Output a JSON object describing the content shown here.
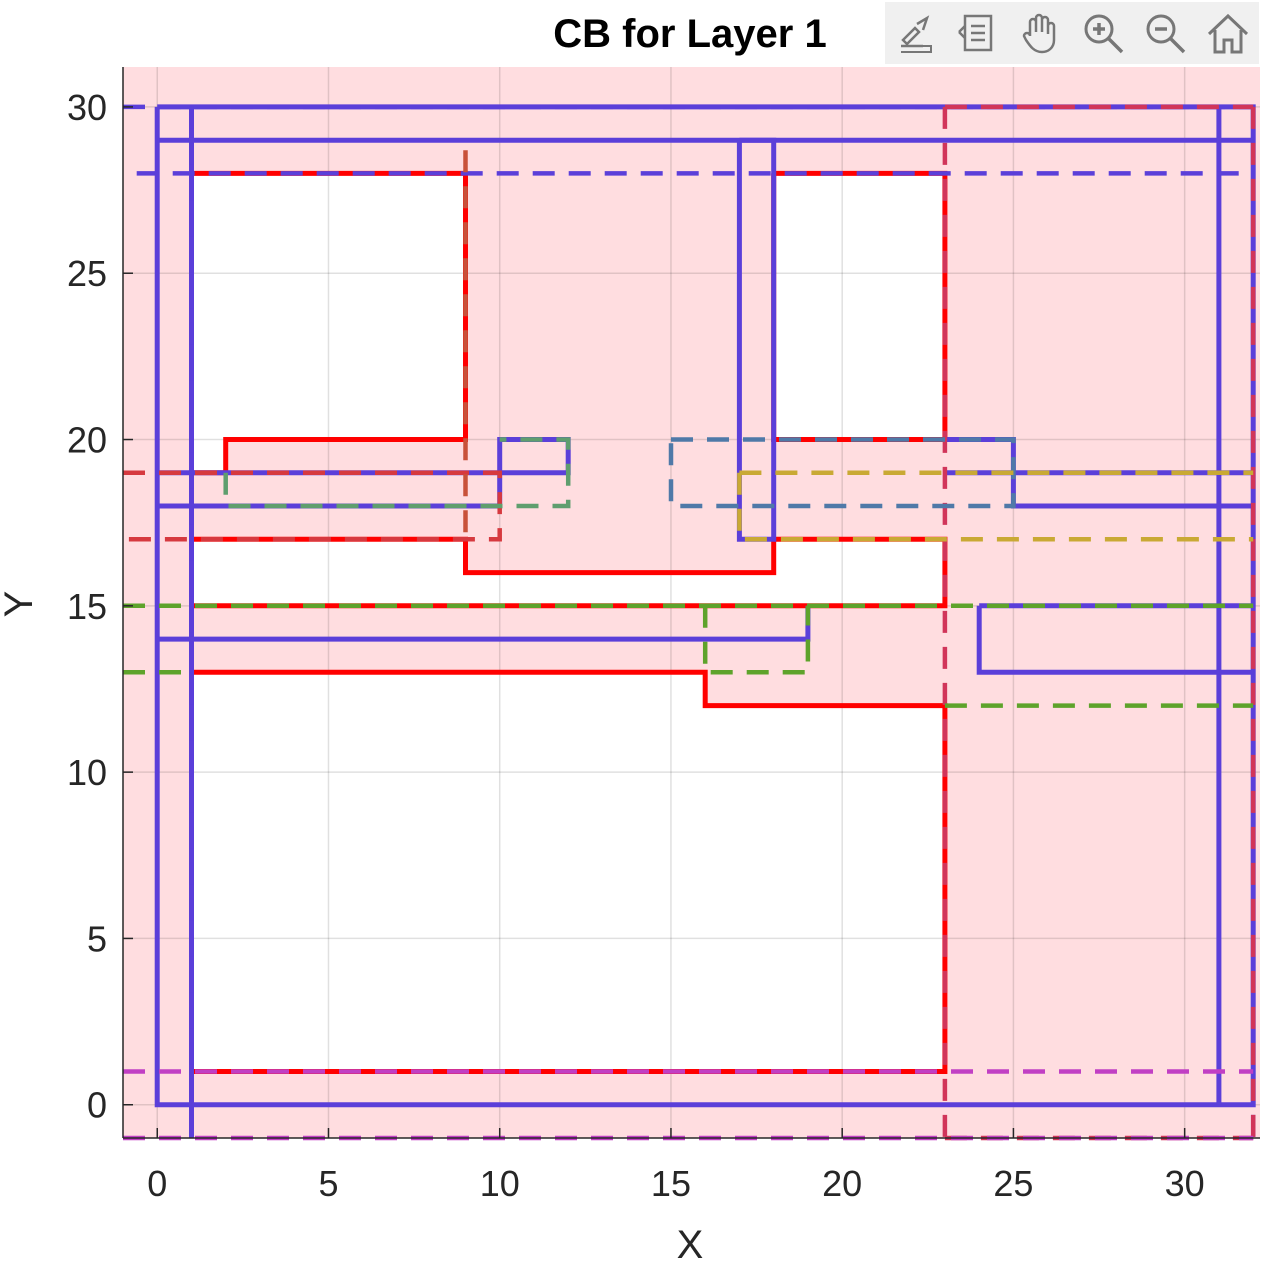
{
  "chart_data": {
    "type": "line",
    "title": "CB for Layer 1",
    "xlabel": "X",
    "ylabel": "Y",
    "xlim": [
      -1,
      32.2
    ],
    "ylim": [
      -1,
      31.2
    ],
    "xticks": [
      0,
      5,
      10,
      15,
      20,
      25,
      30
    ],
    "yticks": [
      0,
      5,
      10,
      15,
      20,
      25,
      30
    ],
    "grid": true,
    "background": {
      "color": "#ffdde0",
      "rect": [
        [
          -1,
          -1
        ],
        [
          32.2,
          31.2
        ]
      ],
      "holes": [
        [
          [
            1,
            28
          ],
          [
            9,
            28
          ],
          [
            9,
            20
          ],
          [
            2,
            20
          ],
          [
            2,
            19
          ],
          [
            1,
            19
          ]
        ],
        [
          [
            18,
            28
          ],
          [
            23,
            28
          ],
          [
            23,
            20
          ],
          [
            18,
            20
          ]
        ],
        [
          [
            1,
            17
          ],
          [
            9,
            17
          ],
          [
            9,
            16
          ],
          [
            18,
            16
          ],
          [
            18,
            17
          ],
          [
            23,
            17
          ],
          [
            23,
            15
          ],
          [
            1,
            15
          ]
        ],
        [
          [
            1,
            13
          ],
          [
            16,
            13
          ],
          [
            16,
            12
          ],
          [
            23,
            12
          ],
          [
            23,
            1
          ],
          [
            1,
            1
          ]
        ]
      ]
    },
    "series": [
      {
        "color": "#ff0000",
        "style": "solid",
        "points": [
          [
            1,
            28
          ],
          [
            9,
            28
          ],
          [
            9,
            20
          ],
          [
            2,
            20
          ],
          [
            2,
            19
          ],
          [
            1,
            19
          ],
          [
            1,
            28
          ]
        ]
      },
      {
        "color": "#ff0000",
        "style": "solid",
        "points": [
          [
            18,
            28
          ],
          [
            23,
            28
          ],
          [
            23,
            20
          ],
          [
            18,
            20
          ],
          [
            18,
            28
          ]
        ]
      },
      {
        "color": "#ff0000",
        "style": "solid",
        "points": [
          [
            1,
            17
          ],
          [
            9,
            17
          ],
          [
            9,
            16
          ],
          [
            18,
            16
          ],
          [
            18,
            17
          ],
          [
            23,
            17
          ],
          [
            23,
            15
          ],
          [
            1,
            15
          ],
          [
            1,
            17
          ]
        ]
      },
      {
        "color": "#ff0000",
        "style": "solid",
        "points": [
          [
            1,
            13
          ],
          [
            16,
            13
          ],
          [
            16,
            12
          ],
          [
            23,
            12
          ],
          [
            23,
            1
          ],
          [
            1,
            1
          ],
          [
            1,
            13
          ]
        ]
      },
      {
        "color": "#5b3fd9",
        "style": "solid",
        "points": [
          [
            0,
            30
          ],
          [
            32,
            30
          ],
          [
            32,
            0
          ],
          [
            0,
            0
          ],
          [
            0,
            30
          ]
        ]
      },
      {
        "color": "#5b3fd9",
        "style": "solid",
        "points": [
          [
            1,
            30
          ],
          [
            1,
            -1
          ]
        ]
      },
      {
        "color": "#5b3fd9",
        "style": "solid",
        "points": [
          [
            0,
            29
          ],
          [
            32,
            29
          ]
        ]
      },
      {
        "color": "#5b3fd9",
        "style": "solid",
        "points": [
          [
            31,
            30
          ],
          [
            31,
            0
          ]
        ]
      },
      {
        "color": "#5b3fd9",
        "style": "solid",
        "points": [
          [
            17,
            29
          ],
          [
            18,
            29
          ],
          [
            18,
            17
          ],
          [
            17,
            17
          ],
          [
            17,
            29
          ]
        ]
      },
      {
        "color": "#5b3fd9",
        "style": "solid",
        "points": [
          [
            0,
            19
          ],
          [
            10,
            19
          ],
          [
            10,
            20
          ],
          [
            12,
            20
          ],
          [
            12,
            19
          ],
          [
            10,
            19
          ]
        ]
      },
      {
        "color": "#5b3fd9",
        "style": "solid",
        "points": [
          [
            0,
            18
          ],
          [
            10,
            18
          ],
          [
            10,
            19
          ]
        ]
      },
      {
        "color": "#5b3fd9",
        "style": "solid",
        "points": [
          [
            23,
            20
          ],
          [
            25,
            20
          ],
          [
            25,
            18
          ],
          [
            32,
            18
          ]
        ]
      },
      {
        "color": "#5b3fd9",
        "style": "solid",
        "points": [
          [
            23,
            19
          ],
          [
            32,
            19
          ]
        ]
      },
      {
        "color": "#5b3fd9",
        "style": "solid",
        "points": [
          [
            0,
            14
          ],
          [
            19,
            14
          ],
          [
            19,
            15
          ]
        ]
      },
      {
        "color": "#5b3fd9",
        "style": "solid",
        "points": [
          [
            24,
            15
          ],
          [
            32,
            15
          ]
        ]
      },
      {
        "color": "#5b3fd9",
        "style": "solid",
        "points": [
          [
            24,
            15
          ],
          [
            24,
            13
          ],
          [
            32,
            13
          ]
        ]
      },
      {
        "color": "#5b3fd9",
        "style": "dashed",
        "points": [
          [
            -1,
            30
          ],
          [
            32,
            30
          ]
        ]
      },
      {
        "color": "#5b3fd9",
        "style": "dashed",
        "points": [
          [
            -0.6,
            28
          ],
          [
            32,
            28
          ]
        ]
      },
      {
        "color": "#5b3fd9",
        "style": "dashed",
        "points": [
          [
            1,
            30
          ],
          [
            1,
            -1
          ]
        ]
      },
      {
        "color": "#5b3fd9",
        "style": "dashed",
        "points": [
          [
            32,
            30
          ],
          [
            32,
            -1
          ]
        ]
      },
      {
        "color": "#d1355a",
        "style": "dashed",
        "points": [
          [
            23,
            30
          ],
          [
            32,
            30
          ]
        ]
      },
      {
        "color": "#d1355a",
        "style": "dashed",
        "points": [
          [
            23,
            30
          ],
          [
            23,
            -1
          ]
        ]
      },
      {
        "color": "#d1355a",
        "style": "dashed",
        "points": [
          [
            32,
            30
          ],
          [
            32,
            -1
          ]
        ]
      },
      {
        "color": "#d1355a",
        "style": "dashed",
        "points": [
          [
            23,
            -1
          ],
          [
            32,
            -1
          ]
        ]
      },
      {
        "color": "#d6393f",
        "style": "dashed",
        "points": [
          [
            -1,
            19
          ],
          [
            10,
            19
          ],
          [
            10,
            17
          ],
          [
            -1,
            17
          ]
        ]
      },
      {
        "color": "#c8523a",
        "style": "dashed",
        "points": [
          [
            9,
            28.7
          ],
          [
            9,
            17
          ]
        ]
      },
      {
        "color": "#5f9e6e",
        "style": "dashed",
        "points": [
          [
            2,
            19
          ],
          [
            2,
            18
          ],
          [
            12,
            18
          ],
          [
            12,
            20
          ],
          [
            10,
            20
          ]
        ]
      },
      {
        "color": "#4f79a8",
        "style": "dashed",
        "points": [
          [
            15,
            20
          ],
          [
            25,
            20
          ],
          [
            25,
            18
          ],
          [
            15,
            18
          ],
          [
            15,
            20
          ]
        ]
      },
      {
        "color": "#c9a934",
        "style": "dashed",
        "points": [
          [
            17,
            19
          ],
          [
            32,
            19
          ]
        ]
      },
      {
        "color": "#c9a934",
        "style": "dashed",
        "points": [
          [
            17,
            19
          ],
          [
            17,
            17
          ],
          [
            32,
            17
          ]
        ]
      },
      {
        "color": "#5ea32b",
        "style": "dashed",
        "points": [
          [
            -1,
            15
          ],
          [
            32,
            15
          ]
        ]
      },
      {
        "color": "#5ea32b",
        "style": "dashed",
        "points": [
          [
            16,
            15
          ],
          [
            16,
            13
          ],
          [
            19,
            13
          ],
          [
            19,
            15
          ]
        ]
      },
      {
        "color": "#5ea32b",
        "style": "dashed",
        "points": [
          [
            -1,
            13
          ],
          [
            1,
            13
          ]
        ]
      },
      {
        "color": "#5ea32b",
        "style": "dashed",
        "points": [
          [
            23,
            12
          ],
          [
            32,
            12
          ]
        ]
      },
      {
        "color": "#c13fc4",
        "style": "dashed",
        "points": [
          [
            -1,
            1
          ],
          [
            32,
            1
          ]
        ]
      },
      {
        "color": "#c13fc4",
        "style": "dashed",
        "points": [
          [
            -1,
            -1
          ],
          [
            32,
            -1
          ]
        ]
      }
    ]
  },
  "toolbar": {
    "tools": [
      "export-icon",
      "legend-icon",
      "pan-hand-icon",
      "zoom-in-icon",
      "zoom-out-icon",
      "home-icon"
    ]
  }
}
